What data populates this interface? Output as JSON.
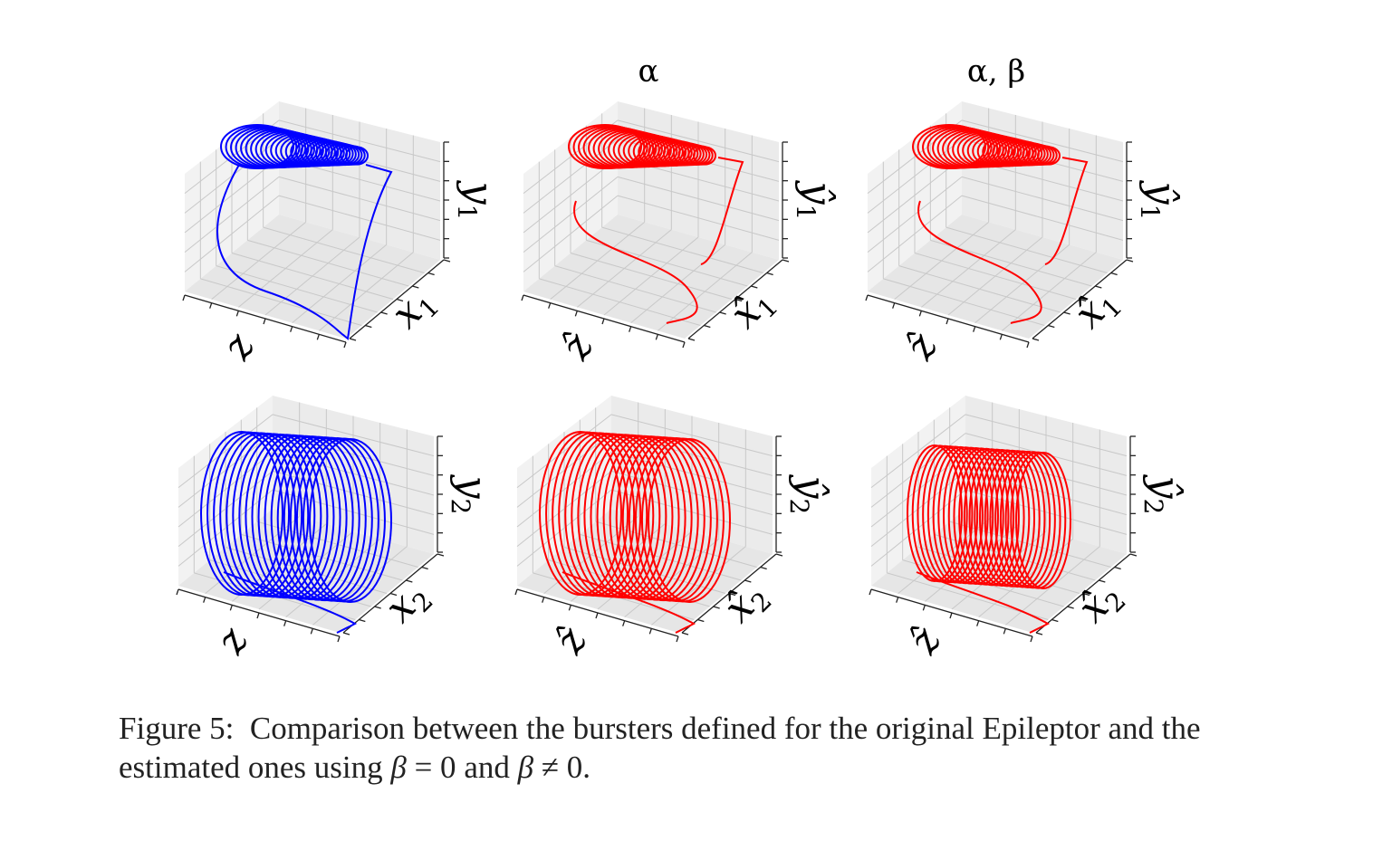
{
  "figure": {
    "column_titles": [
      "",
      "α",
      "α, β"
    ],
    "rows": [
      {
        "panels": [
          {
            "color": "#0000ff",
            "xlabel": "z",
            "ylabel": "x",
            "ylabel_sub": "1",
            "zlabel": "y",
            "zlabel_sub": "1"
          },
          {
            "color": "#ff0000",
            "xlabel": "ẑ",
            "ylabel": "x̂",
            "ylabel_sub": "1",
            "zlabel": "ŷ",
            "zlabel_sub": "1"
          },
          {
            "color": "#ff0000",
            "xlabel": "ẑ",
            "ylabel": "x̂",
            "ylabel_sub": "1",
            "zlabel": "ŷ",
            "zlabel_sub": "1"
          }
        ]
      },
      {
        "panels": [
          {
            "color": "#0000ff",
            "xlabel": "z",
            "ylabel": "x",
            "ylabel_sub": "2",
            "zlabel": "y",
            "zlabel_sub": "2"
          },
          {
            "color": "#ff0000",
            "xlabel": "ẑ",
            "ylabel": "x̂",
            "ylabel_sub": "2",
            "zlabel": "ŷ",
            "zlabel_sub": "2"
          },
          {
            "color": "#ff0000",
            "xlabel": "ẑ",
            "ylabel": "x̂",
            "ylabel_sub": "2",
            "zlabel": "ŷ",
            "zlabel_sub": "2"
          }
        ]
      }
    ]
  },
  "caption": {
    "prefix": "Figure 5:  Comparison between the bursters defined for the original Epileptor and the estimated ones using ",
    "beta1": "β",
    "eq": " = 0",
    "mid": " and ",
    "beta2": "β",
    "neq": " ≠ 0",
    "end": "."
  }
}
